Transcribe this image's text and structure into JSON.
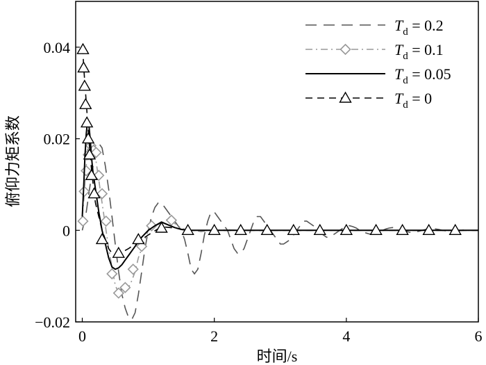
{
  "chart_data": {
    "type": "line",
    "xlabel": "时间/s",
    "ylabel": "俯仰力矩系数",
    "xlim": [
      -0.1,
      6
    ],
    "ylim": [
      -0.02,
      0.05
    ],
    "xticks": [
      0,
      2,
      4,
      6
    ],
    "xtick_labels": [
      "0",
      "2",
      "4",
      "6"
    ],
    "yticks": [
      -0.02,
      0,
      0.02,
      0.04
    ],
    "ytick_labels": [
      "−0.02",
      "0",
      "0.02",
      "0.04"
    ],
    "grid": false,
    "legend_position": "top-right",
    "series": [
      {
        "name": "T_d = 0.2",
        "legend_main": "T",
        "legend_sub": "d",
        "legend_value": " = 0.2",
        "style": "long-dash",
        "marker": "none",
        "color": "#555555",
        "x": [
          0.0,
          0.05,
          0.1,
          0.15,
          0.2,
          0.25,
          0.3,
          0.35,
          0.4,
          0.45,
          0.5,
          0.55,
          0.6,
          0.65,
          0.7,
          0.75,
          0.8,
          0.85,
          0.9,
          0.95,
          1.0,
          1.05,
          1.1,
          1.15,
          1.2,
          1.25,
          1.3,
          1.35,
          1.4,
          1.45,
          1.5,
          1.55,
          1.6,
          1.65,
          1.7,
          1.75,
          1.8,
          1.85,
          1.9,
          1.95,
          2.0,
          2.05,
          2.1,
          2.15,
          2.2,
          2.25,
          2.3,
          2.35,
          2.4,
          2.45,
          2.5,
          2.55,
          2.6,
          2.65,
          2.7,
          2.75,
          2.8,
          2.85,
          2.9,
          2.95,
          3.0,
          3.05,
          3.1,
          3.15,
          3.2,
          3.25,
          3.3,
          3.35,
          3.4,
          3.45,
          3.5,
          3.55,
          3.6,
          3.65,
          3.7,
          3.75,
          3.8,
          3.85,
          3.9,
          3.95,
          4.0,
          4.05,
          4.1,
          4.15,
          4.2,
          4.25,
          4.3,
          4.35,
          4.4,
          4.45,
          4.5,
          4.55,
          4.6,
          4.65,
          4.7,
          4.75,
          4.8,
          4.85,
          4.9,
          4.95,
          5.0,
          5.05,
          5.1,
          5.15,
          5.2,
          5.25,
          5.3,
          5.35,
          5.4,
          5.45,
          5.5,
          5.55,
          5.6,
          5.65,
          5.7,
          5.75,
          5.8
        ],
        "y": [
          0.0,
          0.003,
          0.008,
          0.013,
          0.017,
          0.019,
          0.018,
          0.014,
          0.009,
          0.003,
          -0.003,
          -0.009,
          -0.014,
          -0.017,
          -0.019,
          -0.0195,
          -0.018,
          -0.014,
          -0.009,
          -0.004,
          0.0,
          0.003,
          0.005,
          0.006,
          0.006,
          0.005,
          0.004,
          0.003,
          0.002,
          0.001,
          0.0,
          -0.002,
          -0.005,
          -0.0085,
          -0.0095,
          -0.0085,
          -0.005,
          -0.001,
          0.002,
          0.004,
          0.004,
          0.003,
          0.002,
          0.001,
          0.0,
          -0.002,
          -0.004,
          -0.005,
          -0.005,
          -0.004,
          -0.002,
          0.0,
          0.002,
          0.003,
          0.003,
          0.002,
          0.001,
          0.0,
          -0.001,
          -0.002,
          -0.003,
          -0.003,
          -0.0025,
          -0.002,
          -0.001,
          0.0,
          0.001,
          0.002,
          0.002,
          0.0015,
          0.001,
          0.0,
          -0.0005,
          -0.001,
          -0.0015,
          -0.0015,
          -0.001,
          -0.0005,
          0.0,
          0.0005,
          0.001,
          0.001,
          0.0008,
          0.0005,
          0.0,
          -0.0003,
          -0.0006,
          -0.0008,
          -0.0008,
          -0.0006,
          -0.0003,
          0.0,
          0.0003,
          0.0005,
          0.0006,
          0.0005,
          0.0003,
          0.0,
          -0.0002,
          -0.0004,
          -0.0005,
          -0.0004,
          -0.0002,
          0.0,
          0.0002,
          0.0003,
          0.0004,
          0.0003,
          0.0002,
          0.0,
          -0.0001,
          -0.0002,
          -0.0003,
          -0.0002,
          -0.0001,
          0.0,
          0.0001
        ]
      },
      {
        "name": "T_d = 0.1",
        "legend_main": "T",
        "legend_sub": "d",
        "legend_value": " = 0.1",
        "style": "dash-dot",
        "marker": "diamond",
        "color": "#999999",
        "x": [
          0.0,
          0.02,
          0.04,
          0.06,
          0.08,
          0.1,
          0.12,
          0.14,
          0.16,
          0.18,
          0.2,
          0.22,
          0.25,
          0.3,
          0.35,
          0.4,
          0.45,
          0.5,
          0.55,
          0.6,
          0.65,
          0.7,
          0.75,
          0.8,
          0.85,
          0.9,
          0.95,
          1.0,
          1.05,
          1.1,
          1.2,
          1.3,
          1.4,
          1.5,
          1.6,
          1.7,
          1.8,
          1.9,
          2.0,
          2.2,
          2.4,
          2.6,
          2.8,
          3.0,
          3.5,
          4.0,
          4.5,
          5.0,
          5.5,
          6.0
        ],
        "y": [
          0.003,
          0.006,
          0.01,
          0.014,
          0.018,
          0.02,
          0.0195,
          0.0185,
          0.0175,
          0.017,
          0.016,
          0.014,
          0.011,
          0.006,
          0.001,
          -0.004,
          -0.008,
          -0.012,
          -0.0137,
          -0.014,
          -0.0135,
          -0.0125,
          -0.011,
          -0.009,
          -0.006,
          -0.004,
          -0.002,
          0.0,
          0.001,
          0.001,
          0.0015,
          0.0025,
          0.0015,
          0.0005,
          0.0,
          0.0,
          -0.0003,
          0.0,
          0.0,
          0.0001,
          0.0,
          0.0,
          0.0,
          0.0,
          0.0,
          0.0,
          0.0,
          0.0,
          0.0,
          0.0
        ],
        "markers_x": [
          0.01,
          0.03,
          0.06,
          0.09,
          0.13,
          0.17,
          0.21,
          0.25,
          0.3,
          0.36,
          0.45,
          0.55,
          0.65,
          0.77,
          0.9,
          1.05,
          1.35
        ],
        "markers_y": [
          0.002,
          0.0085,
          0.013,
          0.0165,
          0.0185,
          0.0175,
          0.017,
          0.012,
          0.008,
          0.002,
          -0.0095,
          -0.0137,
          -0.0125,
          -0.0085,
          -0.0035,
          0.001,
          0.0022
        ]
      },
      {
        "name": "T_d = 0.05",
        "legend_main": "T",
        "legend_sub": "d",
        "legend_value": " = 0.05",
        "style": "solid",
        "marker": "none",
        "color": "#000000",
        "x": [
          0.0,
          0.02,
          0.04,
          0.06,
          0.08,
          0.1,
          0.12,
          0.14,
          0.16,
          0.18,
          0.2,
          0.25,
          0.3,
          0.35,
          0.4,
          0.45,
          0.5,
          0.55,
          0.6,
          0.65,
          0.7,
          0.75,
          0.8,
          0.85,
          0.9,
          1.0,
          1.1,
          1.2,
          1.3,
          1.4,
          1.5,
          1.6,
          1.8,
          2.0,
          2.5,
          3.0,
          3.5,
          4.0,
          4.5,
          5.0,
          5.5,
          6.0
        ],
        "y": [
          0.003,
          0.009,
          0.016,
          0.021,
          0.024,
          0.023,
          0.02,
          0.016,
          0.013,
          0.011,
          0.009,
          0.004,
          0.0,
          -0.003,
          -0.006,
          -0.008,
          -0.0085,
          -0.0082,
          -0.0075,
          -0.0065,
          -0.0055,
          -0.0045,
          -0.0035,
          -0.0025,
          -0.0015,
          0.0,
          0.001,
          0.0018,
          0.0012,
          0.0006,
          0.0002,
          0.0,
          0.0,
          0.0,
          0.0,
          0.0,
          0.0,
          0.0,
          0.0,
          0.0,
          0.0,
          0.0
        ]
      },
      {
        "name": "T_d = 0",
        "legend_main": "T",
        "legend_sub": "d",
        "legend_value": " = 0",
        "style": "short-dash",
        "marker": "triangle",
        "color": "#000000",
        "x": [
          0.0,
          0.01,
          0.02,
          0.04,
          0.06,
          0.08,
          0.1,
          0.12,
          0.15,
          0.18,
          0.2,
          0.25,
          0.3,
          0.35,
          0.4,
          0.45,
          0.5,
          0.55,
          0.6,
          0.7,
          0.8,
          0.9,
          1.0,
          1.2,
          1.4,
          1.6,
          2.0,
          2.5,
          3.0,
          4.0,
          5.0,
          6.0
        ],
        "y": [
          0.04,
          0.039,
          0.036,
          0.032,
          0.028,
          0.024,
          0.02,
          0.016,
          0.012,
          0.008,
          0.006,
          0.003,
          0.0,
          -0.002,
          -0.004,
          -0.005,
          -0.0055,
          -0.0052,
          -0.0048,
          -0.004,
          -0.003,
          -0.002,
          -0.001,
          0.0008,
          0.0005,
          0.0,
          0.0,
          0.0,
          0.0,
          0.0,
          0.0,
          0.0
        ],
        "markers_x": [
          0.01,
          0.02,
          0.035,
          0.05,
          0.07,
          0.09,
          0.11,
          0.14,
          0.18,
          0.3,
          0.55,
          0.85,
          1.2,
          1.6,
          2.0,
          2.4,
          2.8,
          3.2,
          3.6,
          4.0,
          4.45,
          4.85,
          5.25,
          5.65
        ],
        "markers_y": [
          0.0395,
          0.0355,
          0.0315,
          0.0275,
          0.0235,
          0.02,
          0.0165,
          0.012,
          0.008,
          -0.002,
          -0.005,
          -0.002,
          0.0005,
          0.0,
          0.0,
          0.0,
          0.0,
          0.0,
          0.0,
          0.0,
          0.0,
          0.0,
          0.0,
          0.0
        ]
      }
    ]
  }
}
